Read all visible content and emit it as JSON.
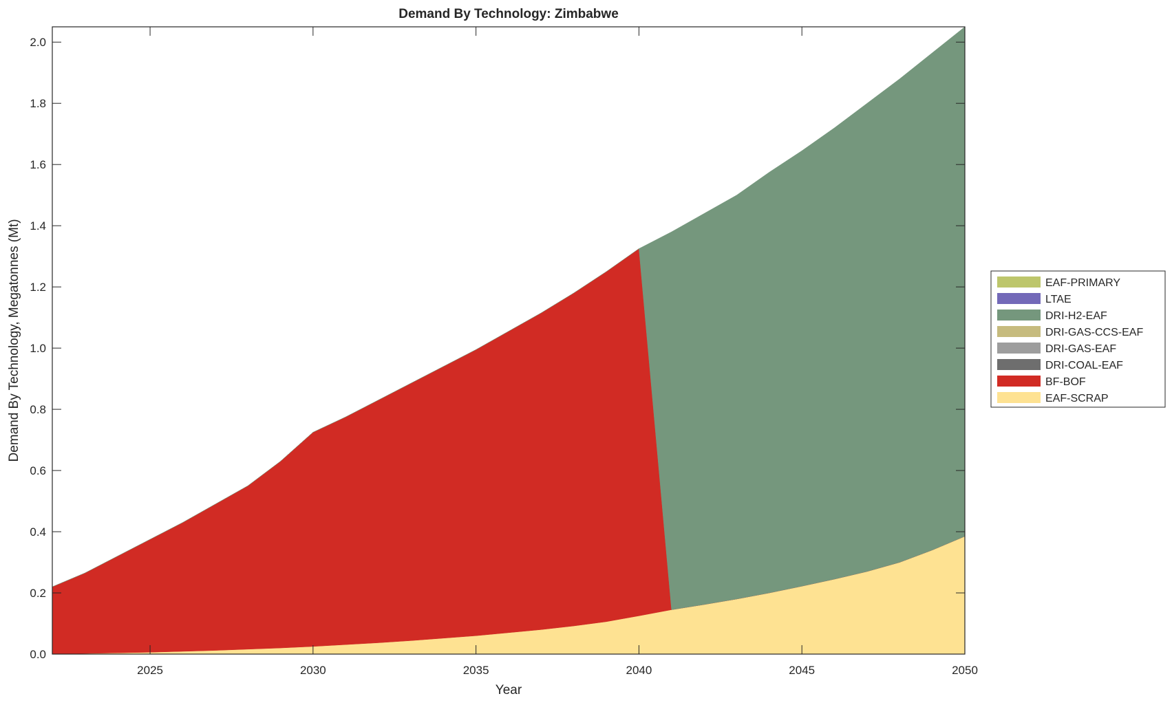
{
  "chart_data": {
    "type": "area",
    "stacked": true,
    "title": "Demand By Technology: Zimbabwe",
    "xlabel": "Year",
    "ylabel": "Demand By Technology, Megatonnes (Mt)",
    "xlim": [
      2022,
      2050
    ],
    "ylim": [
      0,
      2.05
    ],
    "xticks": [
      "2025",
      "2030",
      "2035",
      "2040",
      "2045",
      "2050"
    ],
    "yticks": [
      "0.0",
      "0.2",
      "0.4",
      "0.6",
      "0.8",
      "1.0",
      "1.2",
      "1.4",
      "1.6",
      "1.8",
      "2.0"
    ],
    "grid": false,
    "legend_position": "right",
    "x": [
      2022,
      2023,
      2024,
      2025,
      2026,
      2027,
      2028,
      2029,
      2030,
      2031,
      2032,
      2033,
      2034,
      2035,
      2036,
      2037,
      2038,
      2039,
      2040,
      2041,
      2042,
      2043,
      2044,
      2045,
      2046,
      2047,
      2048,
      2049,
      2050
    ],
    "series": [
      {
        "name": "EAF-SCRAP",
        "color": "#fee292",
        "values": [
          0,
          0.002,
          0.004,
          0.006,
          0.009,
          0.012,
          0.016,
          0.02,
          0.025,
          0.031,
          0.037,
          0.044,
          0.052,
          0.06,
          0.07,
          0.08,
          0.092,
          0.106,
          0.125,
          0.145,
          0.162,
          0.18,
          0.2,
          0.222,
          0.245,
          0.27,
          0.3,
          0.34,
          0.385
        ]
      },
      {
        "name": "BF-BOF",
        "color": "#d12b24",
        "values": [
          0.22,
          0.263,
          0.316,
          0.369,
          0.421,
          0.478,
          0.534,
          0.61,
          0.7,
          0.744,
          0.793,
          0.841,
          0.888,
          0.935,
          0.985,
          1.035,
          1.088,
          1.144,
          1.2,
          0,
          0,
          0,
          0,
          0,
          0,
          0,
          0,
          0,
          0
        ]
      },
      {
        "name": "DRI-COAL-EAF",
        "color": "#6e6e6e",
        "values": [
          0,
          0,
          0,
          0,
          0,
          0,
          0,
          0,
          0,
          0,
          0,
          0,
          0,
          0,
          0,
          0,
          0,
          0,
          0,
          0,
          0,
          0,
          0,
          0,
          0,
          0,
          0,
          0,
          0
        ]
      },
      {
        "name": "DRI-GAS-EAF",
        "color": "#9d9d9d",
        "values": [
          0,
          0,
          0,
          0,
          0,
          0,
          0,
          0,
          0,
          0,
          0,
          0,
          0,
          0,
          0,
          0,
          0,
          0,
          0,
          0,
          0,
          0,
          0,
          0,
          0,
          0,
          0,
          0,
          0
        ]
      },
      {
        "name": "DRI-GAS-CCS-EAF",
        "color": "#c6bb7e",
        "values": [
          0,
          0,
          0,
          0,
          0,
          0,
          0,
          0,
          0,
          0,
          0,
          0,
          0,
          0,
          0,
          0,
          0,
          0,
          0,
          0,
          0,
          0,
          0,
          0,
          0,
          0,
          0,
          0,
          0
        ]
      },
      {
        "name": "DRI-H2-EAF",
        "color": "#75977d",
        "values": [
          0,
          0,
          0,
          0,
          0,
          0,
          0,
          0,
          0,
          0,
          0,
          0,
          0,
          0,
          0,
          0,
          0,
          0,
          0,
          1.235,
          1.278,
          1.32,
          1.375,
          1.423,
          1.475,
          1.53,
          1.58,
          1.625,
          1.665
        ]
      },
      {
        "name": "LTAE",
        "color": "#7369b8",
        "values": [
          0,
          0,
          0,
          0,
          0,
          0,
          0,
          0,
          0,
          0,
          0,
          0,
          0,
          0,
          0,
          0,
          0,
          0,
          0,
          0,
          0,
          0,
          0,
          0,
          0,
          0,
          0,
          0,
          0
        ]
      },
      {
        "name": "EAF-PRIMARY",
        "color": "#bdc66b",
        "values": [
          0,
          0,
          0,
          0,
          0,
          0,
          0,
          0,
          0,
          0,
          0,
          0,
          0,
          0,
          0,
          0,
          0,
          0,
          0,
          0,
          0,
          0,
          0,
          0,
          0,
          0,
          0,
          0,
          0
        ]
      }
    ]
  }
}
